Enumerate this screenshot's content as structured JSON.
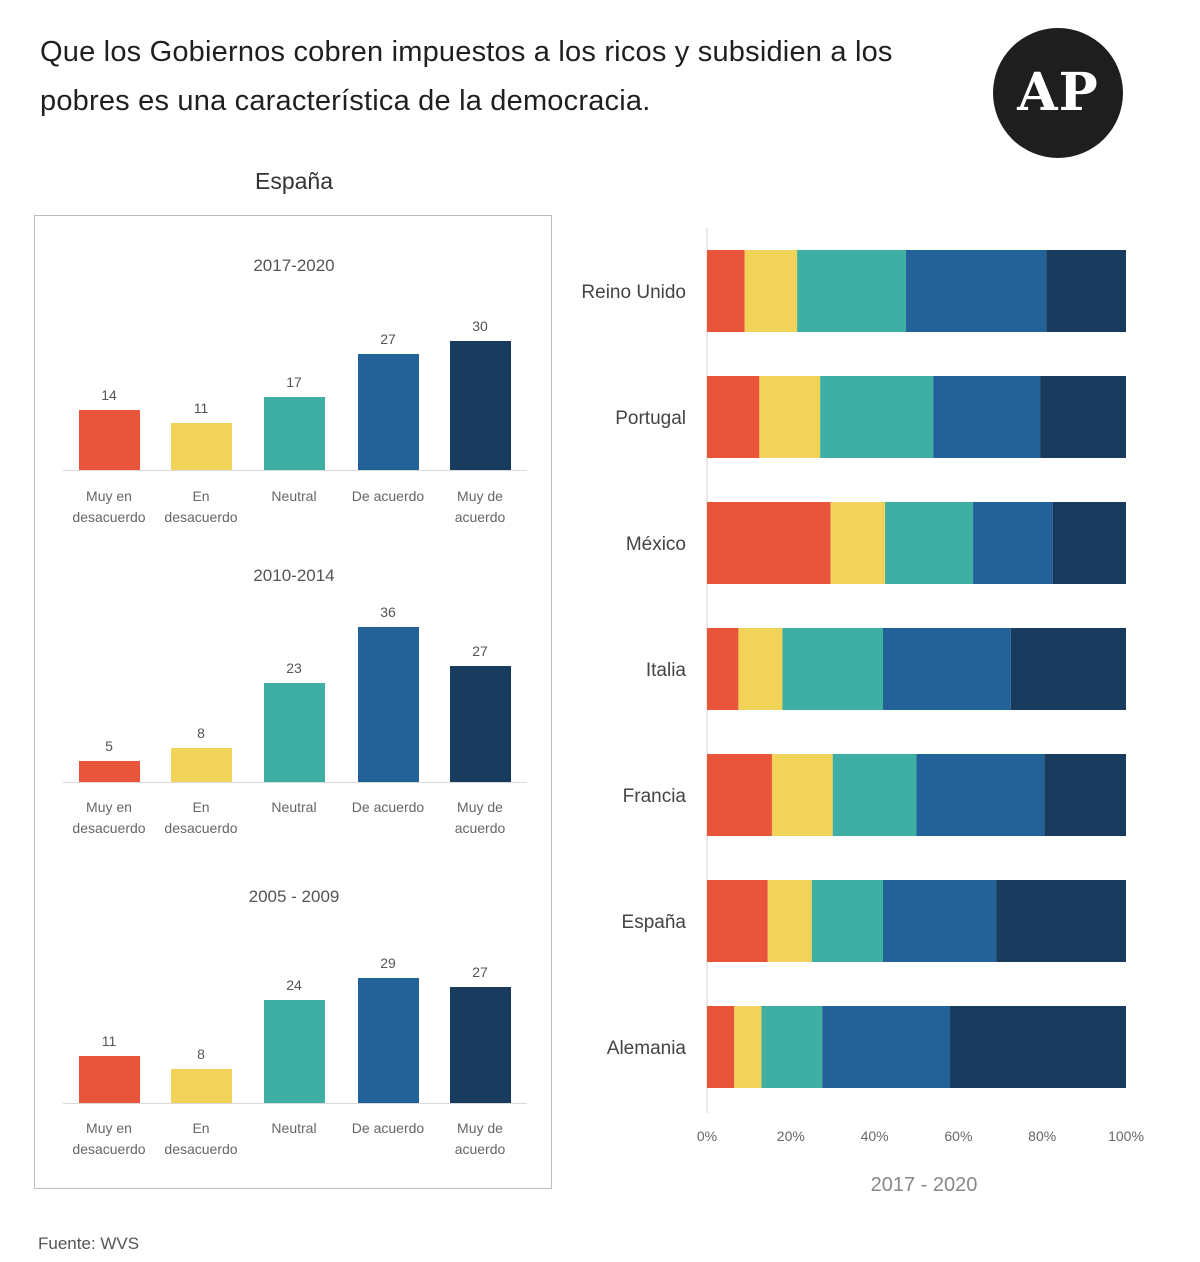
{
  "header": {
    "title": "Que los Gobiernos cobren impuestos a los ricos y subsidien a los pobres es una característica de la democracia.",
    "logo_text": "AP"
  },
  "spain_panel": {
    "heading": "España",
    "categories": [
      "Muy en desacuerdo",
      "En desacuerdo",
      "Neutral",
      "De acuerdo",
      "Muy de acuerdo"
    ],
    "colors": [
      "#e8553a",
      "#f2d35a",
      "#3fafa3",
      "#236199",
      "#183b5e"
    ],
    "periods": [
      {
        "label": "2017-2020",
        "values": [
          14,
          11,
          17,
          27,
          30
        ]
      },
      {
        "label": "2010-2014",
        "values": [
          5,
          8,
          23,
          36,
          27
        ]
      },
      {
        "label": "2005 - 2009",
        "values": [
          11,
          8,
          24,
          29,
          27
        ]
      }
    ]
  },
  "chart_data": {
    "type": "bar",
    "orientation": "horizontal",
    "stacked": "100%",
    "xlabel": "2017 - 2020",
    "categories": [
      "Reino Unido",
      "Portugal",
      "México",
      "Italia",
      "Francia",
      "España",
      "Alemania"
    ],
    "x_ticks": [
      "0%",
      "20%",
      "40%",
      "60%",
      "80%",
      "100%"
    ],
    "xlim": [
      0,
      100
    ],
    "series": [
      {
        "color": "#e8553a",
        "values": [
          9,
          12.5,
          29.5,
          7.5,
          15.5,
          14.5,
          6.5
        ]
      },
      {
        "color": "#f2d35a",
        "values": [
          12.5,
          14.5,
          13,
          10.5,
          14.5,
          10.5,
          6.5
        ]
      },
      {
        "color": "#3fafa3",
        "values": [
          26,
          27,
          21,
          24,
          20,
          17,
          14.5
        ]
      },
      {
        "color": "#236199",
        "values": [
          33.5,
          25.5,
          19,
          30.5,
          30.5,
          27,
          30.5
        ]
      },
      {
        "color": "#183b5e",
        "values": [
          19,
          20.5,
          17.5,
          27.5,
          19.5,
          31,
          42
        ]
      }
    ]
  },
  "footer": {
    "source": "Fuente: WVS"
  }
}
